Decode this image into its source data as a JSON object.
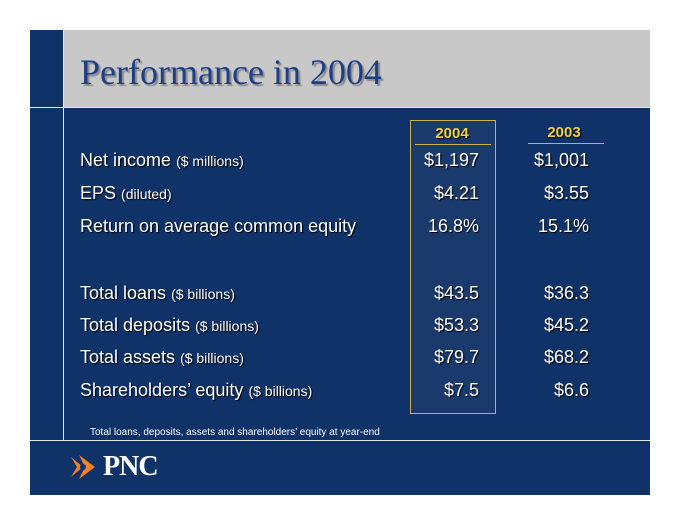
{
  "title": "Performance in 2004",
  "columns": [
    "2004",
    "2003"
  ],
  "rows": [
    {
      "label": "Net income",
      "unit": "($ millions)",
      "v2004": "$1,197",
      "v2003": "$1,001"
    },
    {
      "label": "EPS",
      "unit": "(diluted)",
      "v2004": "$4.21",
      "v2003": "$3.55"
    },
    {
      "label": "Return on average common equity",
      "unit": "",
      "v2004": "16.8%",
      "v2003": "15.1%"
    },
    {
      "label": "Total loans",
      "unit": "($ billions)",
      "v2004": "$43.5",
      "v2003": "$36.3"
    },
    {
      "label": "Total deposits",
      "unit": "($ billions)",
      "v2004": "$53.3",
      "v2003": "$45.2"
    },
    {
      "label": "Total assets",
      "unit": "($ billions)",
      "v2004": "$79.7",
      "v2003": "$68.2"
    },
    {
      "label": "Shareholders’ equity",
      "unit": "($ billions)",
      "v2004": "$7.5",
      "v2003": "$6.6"
    }
  ],
  "footnote": "Total loans, deposits, assets and shareholders’ equity at year-end",
  "logo": {
    "text": "PNC",
    "icon": "pnc-logo-icon",
    "color": "#f58025"
  }
}
